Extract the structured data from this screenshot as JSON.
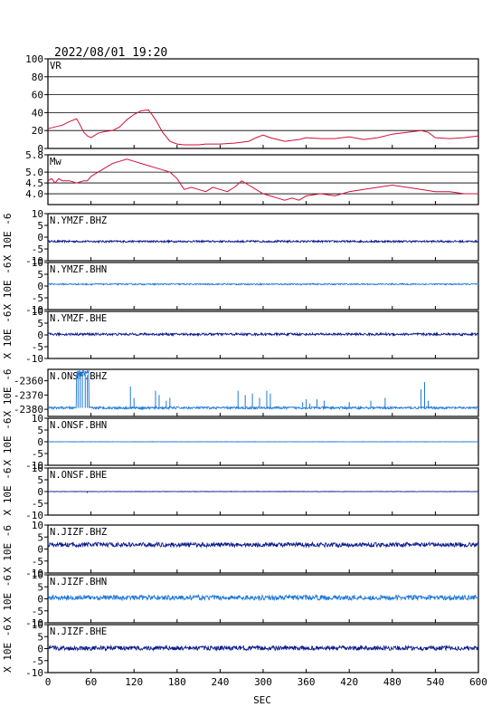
{
  "title": "2022/08/01 19:20",
  "xlabel": "SEC",
  "x_ticks": [
    0,
    60,
    120,
    180,
    240,
    300,
    360,
    420,
    480,
    540,
    600
  ],
  "xlim": [
    0,
    600
  ],
  "colors": {
    "vr": "#d0103a",
    "mw": "#d0103a",
    "dark": "#0a1a8a",
    "light": "#1e78d8",
    "axis": "#000000",
    "grid": "#000000"
  },
  "chart_data": [
    {
      "type": "line",
      "label": "VR",
      "ylim": [
        0,
        100
      ],
      "grid": true,
      "y_ticks": [
        100,
        80,
        60,
        40,
        20,
        0
      ],
      "x": [
        0,
        10,
        20,
        30,
        40,
        45,
        50,
        55,
        60,
        70,
        80,
        90,
        100,
        110,
        120,
        130,
        140,
        145,
        150,
        160,
        170,
        180,
        190,
        200,
        210,
        220,
        240,
        260,
        280,
        290,
        300,
        310,
        320,
        330,
        340,
        350,
        360,
        380,
        400,
        420,
        440,
        460,
        480,
        500,
        510,
        520,
        530,
        540,
        560,
        580,
        600
      ],
      "values": [
        22,
        24,
        26,
        30,
        33,
        26,
        18,
        14,
        12,
        17,
        19,
        20,
        24,
        32,
        38,
        42,
        43,
        38,
        32,
        18,
        8,
        5,
        4,
        4,
        4,
        5,
        5,
        6,
        8,
        12,
        15,
        12,
        10,
        8,
        9,
        10,
        12,
        11,
        11,
        13,
        10,
        12,
        16,
        18,
        19,
        20,
        18,
        12,
        11,
        12,
        14
      ]
    },
    {
      "type": "line",
      "label": "Mw",
      "ylim": [
        3.5,
        5.8
      ],
      "grid": true,
      "y_ticks": [
        "5.8",
        "5.0",
        "4.5",
        "4.0"
      ],
      "y_tick_values": [
        5.8,
        5.0,
        4.5,
        4.0
      ],
      "x": [
        0,
        5,
        10,
        15,
        20,
        30,
        40,
        50,
        55,
        60,
        70,
        80,
        90,
        100,
        110,
        120,
        130,
        140,
        150,
        160,
        170,
        180,
        190,
        200,
        210,
        220,
        230,
        240,
        250,
        260,
        270,
        280,
        290,
        300,
        310,
        320,
        330,
        340,
        350,
        360,
        380,
        400,
        420,
        440,
        460,
        480,
        500,
        520,
        540,
        560,
        580,
        600
      ],
      "values": [
        4.6,
        4.7,
        4.5,
        4.7,
        4.6,
        4.6,
        4.5,
        4.6,
        4.6,
        4.8,
        5.0,
        5.2,
        5.4,
        5.5,
        5.6,
        5.5,
        5.4,
        5.3,
        5.2,
        5.1,
        5.0,
        4.7,
        4.2,
        4.3,
        4.2,
        4.1,
        4.3,
        4.2,
        4.1,
        4.3,
        4.6,
        4.4,
        4.2,
        4.0,
        3.9,
        3.8,
        3.7,
        3.8,
        3.7,
        3.9,
        4.0,
        3.9,
        4.1,
        4.2,
        4.3,
        4.4,
        4.3,
        4.2,
        4.1,
        4.1,
        4.0,
        4.0
      ]
    },
    {
      "type": "line",
      "label": "N.YMZF.BHZ",
      "ylabel": "X 10E -6",
      "ylim": [
        -10,
        10
      ],
      "y_ticks": [
        10,
        5,
        0,
        -5,
        -10
      ],
      "color": "dark",
      "baseline": -1.8,
      "noise": 0.4,
      "spikes": []
    },
    {
      "type": "line",
      "label": "N.YMZF.BHN",
      "ylabel": "X 10E -6",
      "ylim": [
        -10,
        10
      ],
      "y_ticks": [
        10,
        5,
        0,
        -5,
        -10
      ],
      "color": "light",
      "baseline": 0.8,
      "noise": 0.3,
      "spikes": []
    },
    {
      "type": "line",
      "label": "N.YMZF.BHE",
      "ylabel": "X 10E -6",
      "ylim": [
        -10,
        10
      ],
      "y_ticks": [
        10,
        5,
        0,
        -5,
        -10
      ],
      "color": "dark",
      "baseline": 0.3,
      "noise": 0.5,
      "spikes": []
    },
    {
      "type": "line",
      "label": "N.ONSF.BHZ",
      "ylabel": "X 10E -6",
      "ylim": [
        -2385,
        -2352
      ],
      "y_ticks": [
        -2360,
        -2370,
        -2380
      ],
      "color": "light",
      "baseline": -2379,
      "noise": 0.8,
      "spikes": [
        [
          42,
          -2353
        ],
        [
          45,
          -2354
        ],
        [
          48,
          -2354
        ],
        [
          52,
          -2355
        ],
        [
          55,
          -2356
        ],
        [
          115,
          -2364
        ],
        [
          120,
          -2372
        ],
        [
          150,
          -2367
        ],
        [
          155,
          -2370
        ],
        [
          165,
          -2374
        ],
        [
          170,
          -2372
        ],
        [
          265,
          -2367
        ],
        [
          275,
          -2370
        ],
        [
          285,
          -2369
        ],
        [
          295,
          -2372
        ],
        [
          305,
          -2367
        ],
        [
          310,
          -2369
        ],
        [
          355,
          -2375
        ],
        [
          360,
          -2373
        ],
        [
          365,
          -2376
        ],
        [
          375,
          -2373
        ],
        [
          385,
          -2374
        ],
        [
          420,
          -2375
        ],
        [
          450,
          -2374
        ],
        [
          470,
          -2372
        ],
        [
          520,
          -2366
        ],
        [
          525,
          -2361
        ],
        [
          530,
          -2374
        ]
      ],
      "burst": [
        [
          40,
          -2356
        ],
        [
          43,
          -2353
        ],
        [
          47,
          -2354
        ],
        [
          51,
          -2353
        ],
        [
          54,
          -2355
        ],
        [
          57,
          -2378
        ]
      ]
    },
    {
      "type": "line",
      "label": "N.ONSF.BHN",
      "ylabel": "X 10E -6",
      "ylim": [
        -10,
        10
      ],
      "y_ticks": [
        10,
        5,
        0,
        -5,
        -10
      ],
      "color": "light",
      "baseline": 0,
      "noise": 0.05,
      "spikes": []
    },
    {
      "type": "line",
      "label": "N.ONSF.BHE",
      "ylabel": "X 10E -6",
      "ylim": [
        -10,
        10
      ],
      "y_ticks": [
        10,
        5,
        0,
        -5,
        -10
      ],
      "color": "dark",
      "baseline": 0,
      "noise": 0.08,
      "spikes": [
        [
          55,
          -0.6
        ],
        [
          255,
          0.3
        ]
      ]
    },
    {
      "type": "line",
      "label": "N.JIZF.BHZ",
      "ylabel": "X 10E -6",
      "ylim": [
        -10,
        10
      ],
      "y_ticks": [
        10,
        5,
        0,
        -5,
        -10
      ],
      "color": "dark",
      "baseline": 1.8,
      "noise": 0.9,
      "spikes": []
    },
    {
      "type": "line",
      "label": "N.JIZF.BHN",
      "ylabel": "X 10E -6",
      "ylim": [
        -10,
        10
      ],
      "y_ticks": [
        10,
        5,
        0,
        -5,
        -10
      ],
      "color": "light",
      "baseline": 0.5,
      "noise": 1.0,
      "spikes": []
    },
    {
      "type": "line",
      "label": "N.JIZF.BHE",
      "ylabel": "X 10E -6",
      "ylim": [
        -10,
        10
      ],
      "y_ticks": [
        10,
        5,
        0,
        -5,
        -10
      ],
      "color": "dark",
      "baseline": 0.2,
      "noise": 0.9,
      "spikes": []
    }
  ]
}
